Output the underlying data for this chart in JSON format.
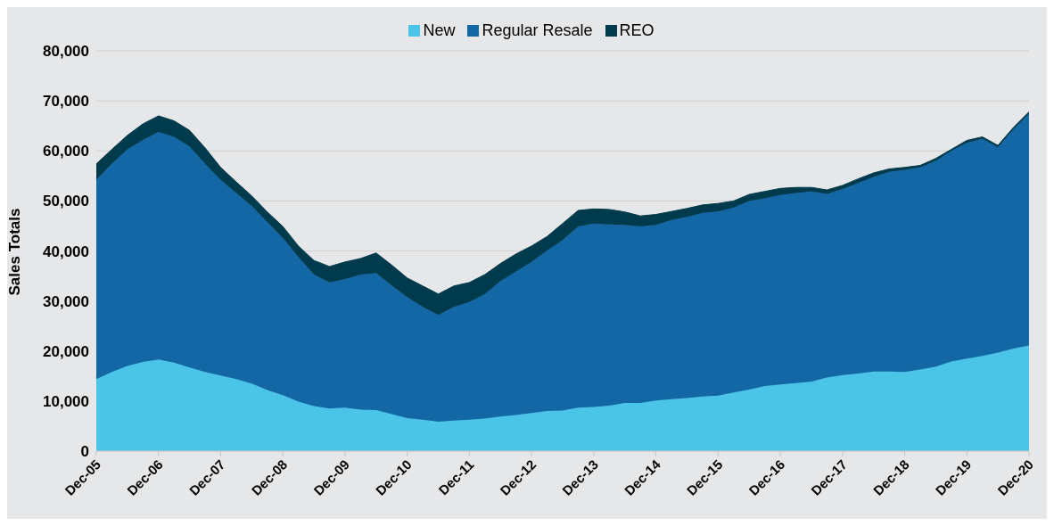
{
  "chart_data": {
    "type": "area",
    "stacked": true,
    "ylabel": "Sales Totals",
    "categories": [
      "Dec-05",
      null,
      null,
      null,
      "Dec-06",
      null,
      null,
      null,
      "Dec-07",
      null,
      null,
      null,
      "Dec-08",
      null,
      null,
      null,
      "Dec-09",
      null,
      null,
      null,
      "Dec-10",
      null,
      null,
      null,
      "Dec-11",
      null,
      null,
      null,
      "Dec-12",
      null,
      null,
      null,
      "Dec-13",
      null,
      null,
      null,
      "Dec-14",
      null,
      null,
      null,
      "Dec-15",
      null,
      null,
      null,
      "Dec-16",
      null,
      null,
      null,
      "Dec-17",
      null,
      null,
      null,
      "Dec-18",
      null,
      null,
      null,
      "Dec-19",
      null,
      null,
      null,
      "Dec-20"
    ],
    "series": [
      {
        "name": "New",
        "color": "#4ac5e8",
        "values": [
          14400,
          15800,
          17000,
          17800,
          18300,
          17700,
          16700,
          15800,
          15100,
          14400,
          13500,
          12200,
          11200,
          9900,
          9000,
          8500,
          8700,
          8300,
          8200,
          7400,
          6600,
          6300,
          5900,
          6100,
          6300,
          6500,
          6900,
          7200,
          7600,
          8000,
          8100,
          8700,
          8800,
          9100,
          9600,
          9600,
          10100,
          10400,
          10600,
          10900,
          11100,
          11700,
          12300,
          13000,
          13300,
          13600,
          13900,
          14700,
          15200,
          15500,
          15900,
          15900,
          15800,
          16300,
          16900,
          17900,
          18500,
          19000,
          19700,
          20500,
          21100
        ]
      },
      {
        "name": "Regular Resale",
        "color": "#1467a5",
        "values": [
          39800,
          41600,
          43300,
          44400,
          45500,
          45100,
          44200,
          41600,
          39100,
          37200,
          35500,
          33600,
          31400,
          28900,
          26300,
          25200,
          25700,
          27000,
          27400,
          25700,
          24200,
          22500,
          21300,
          22700,
          23500,
          24900,
          27100,
          28700,
          30200,
          32100,
          34100,
          36200,
          36700,
          36200,
          35600,
          35300,
          35100,
          35800,
          36200,
          36700,
          36800,
          37000,
          37700,
          37500,
          37900,
          38000,
          38000,
          36700,
          37200,
          38100,
          38900,
          39900,
          40400,
          40400,
          41100,
          42100,
          43100,
          43400,
          41000,
          43800,
          46300
        ]
      },
      {
        "name": "REO",
        "color": "#003a4d",
        "values": [
          3200,
          2900,
          2800,
          3200,
          3200,
          3200,
          3200,
          3200,
          2500,
          2200,
          2000,
          2000,
          2300,
          2200,
          2800,
          3200,
          3400,
          3200,
          4000,
          4100,
          3800,
          4200,
          4200,
          4200,
          3900,
          3900,
          3500,
          3500,
          3200,
          2800,
          3300,
          3200,
          2900,
          3000,
          2600,
          2100,
          2100,
          1700,
          1700,
          1600,
          1600,
          1300,
          1300,
          1400,
          1300,
          1100,
          800,
          800,
          700,
          800,
          800,
          600,
          500,
          400,
          500,
          300,
          500,
          400,
          400,
          400,
          400
        ]
      }
    ],
    "ylim": [
      0,
      80000
    ],
    "yticks": [
      0,
      {
        "value": 10000,
        "label": "10,000"
      },
      {
        "value": 20000,
        "label": "20,000"
      },
      {
        "value": 30000,
        "label": "30,000"
      },
      {
        "value": 40000,
        "label": "40,000"
      },
      {
        "value": 50000,
        "label": "50,000"
      },
      {
        "value": 60000,
        "label": "60,000"
      },
      {
        "value": 70000,
        "label": "70,000"
      },
      {
        "value": 80000,
        "label": "80,000"
      }
    ],
    "grid": "y",
    "legend": "top"
  }
}
